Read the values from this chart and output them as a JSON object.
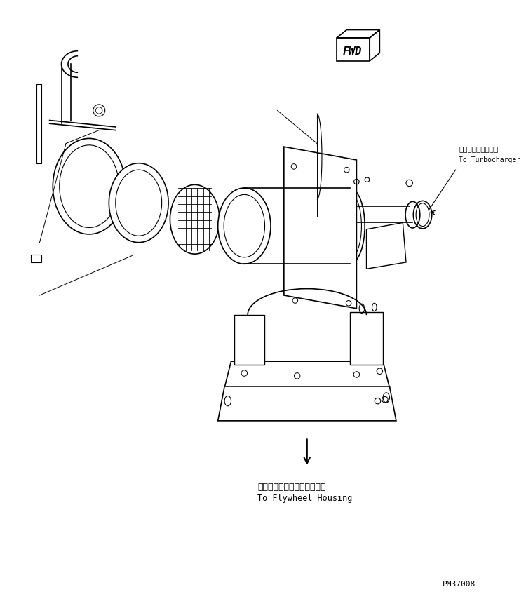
{
  "background_color": "#ffffff",
  "line_color": "#000000",
  "title_text": "",
  "fwd_label": "FWD",
  "turbo_label_jp": "ターボチャージャヘ",
  "turbo_label_en": "To Turbocharger",
  "flywheel_label_jp": "フライホイールハウジングヘ",
  "flywheel_label_en": "To Flywheel Housing",
  "part_number": "PM37008",
  "fig_width": 7.5,
  "fig_height": 8.74,
  "dpi": 100
}
